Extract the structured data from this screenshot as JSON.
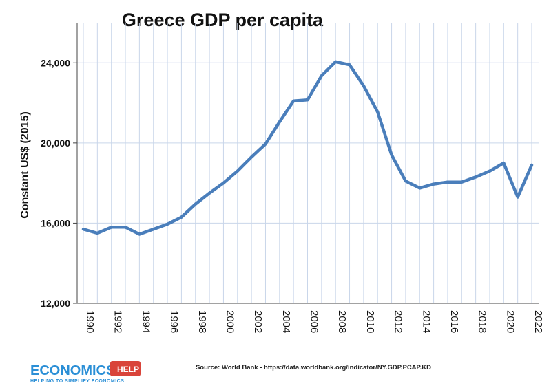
{
  "chart_data": {
    "type": "line",
    "title": "Greece GDP per capita",
    "xlabel": "",
    "ylabel": "Constant US$ (2015)",
    "x": [
      1990,
      1991,
      1992,
      1993,
      1994,
      1995,
      1996,
      1997,
      1998,
      1999,
      2000,
      2001,
      2002,
      2003,
      2004,
      2005,
      2006,
      2007,
      2008,
      2009,
      2010,
      2011,
      2012,
      2013,
      2014,
      2015,
      2016,
      2017,
      2018,
      2019,
      2020,
      2021,
      2022
    ],
    "xtick_labels": [
      "1990",
      "1992",
      "1994",
      "1996",
      "1998",
      "2000",
      "2002",
      "2004",
      "2006",
      "2008",
      "2010",
      "2012",
      "2014",
      "2016",
      "2018",
      "2020",
      "2022"
    ],
    "ylim": [
      12000,
      26000
    ],
    "yticks": [
      12000,
      16000,
      20000,
      24000
    ],
    "ytick_labels": [
      "12,000",
      "16,000",
      "20,000",
      "24,000"
    ],
    "series": [
      {
        "values": [
          15700,
          15500,
          15800,
          15800,
          15450,
          15700,
          15950,
          16300,
          16950,
          17500,
          18000,
          18600,
          19300,
          19950,
          21050,
          22100,
          22150,
          23350,
          24050,
          23900,
          22850,
          21550,
          19400,
          18100,
          17750,
          17950,
          18050,
          18050,
          18300,
          18600,
          19000,
          17300,
          18900
        ]
      }
    ],
    "grid": true,
    "legend": "none",
    "line_color": "#4a7ebb",
    "grid_color": "#c9d6ea"
  },
  "footer": {
    "source": "Source: World Bank - https://data.worldbank.org/indicator/NY.GDP.PCAP.KD"
  },
  "logo": {
    "name": "ECONOMICS",
    "badge": "HELP",
    "tagline": "HELPING TO SIMPLIFY ECONOMICS",
    "colors": {
      "name": "#2b8fd6",
      "badge": "#d9443a",
      "tagline": "#2b8fd6"
    }
  }
}
